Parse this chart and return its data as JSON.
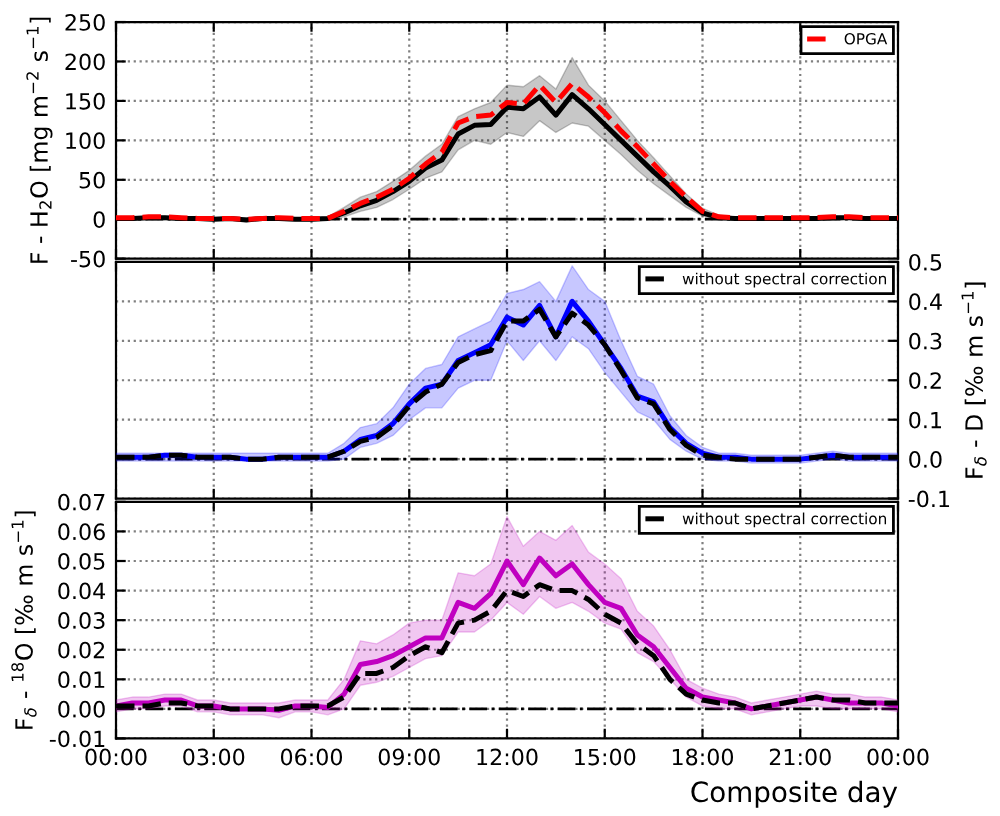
{
  "chart_data": [
    {
      "type": "line",
      "ylabel": "F - H$_{2}$O [mg m$^{−2}$ s$^{−1}$]",
      "x": [
        0,
        0.5,
        1,
        1.5,
        2,
        2.5,
        3,
        3.5,
        4,
        4.5,
        5,
        5.5,
        6,
        6.5,
        7,
        7.5,
        8,
        8.5,
        9,
        9.5,
        10,
        10.5,
        11,
        11.5,
        12,
        12.5,
        13,
        13.5,
        14,
        14.5,
        15,
        15.5,
        16,
        16.5,
        17,
        17.5,
        18,
        18.5,
        19,
        19.5,
        20,
        20.5,
        21,
        21.5,
        22,
        22.5,
        23,
        23.5,
        24
      ],
      "xlim": [
        0,
        24
      ],
      "xticks": [
        0,
        3,
        6,
        9,
        12,
        15,
        18,
        21,
        24
      ],
      "ylim": [
        -50,
        250
      ],
      "yticks": [
        -50,
        0,
        50,
        100,
        150,
        200,
        250
      ],
      "grid": true,
      "legend": "top right",
      "tick_labels": "y",
      "ref_lines": [
        {
          "axis": "y",
          "value": 0,
          "color": "#000000",
          "line_style": "dashdot"
        }
      ],
      "series": [
        {
          "color": "#000000",
          "line_style": "solid",
          "values": [
            1,
            1,
            2,
            2,
            1,
            1,
            0,
            1,
            -1,
            1,
            1,
            0,
            0,
            1,
            8,
            17,
            24,
            35,
            48,
            65,
            75,
            108,
            119,
            120,
            142,
            140,
            155,
            132,
            158,
            140,
            120,
            100,
            80,
            60,
            42,
            22,
            8,
            2,
            1,
            1,
            1,
            1,
            1,
            1,
            2,
            2,
            1,
            1,
            1
          ],
          "lower": [
            -1,
            -1,
            0,
            0,
            -1,
            -1,
            -2,
            -1,
            -3,
            -1,
            -1,
            -2,
            -2,
            -1,
            3,
            10,
            15,
            25,
            38,
            52,
            60,
            88,
            100,
            95,
            110,
            105,
            125,
            110,
            122,
            118,
            100,
            82,
            62,
            45,
            30,
            15,
            4,
            0,
            -1,
            -1,
            -1,
            -1,
            -1,
            -1,
            0,
            0,
            -1,
            -1,
            -1
          ],
          "upper": [
            3,
            3,
            4,
            4,
            3,
            3,
            2,
            3,
            1,
            3,
            3,
            2,
            2,
            3,
            15,
            28,
            35,
            48,
            62,
            80,
            95,
            130,
            140,
            148,
            170,
            168,
            182,
            165,
            205,
            170,
            150,
            125,
            100,
            78,
            55,
            32,
            14,
            5,
            3,
            3,
            3,
            3,
            3,
            3,
            4,
            4,
            3,
            3,
            3
          ]
        },
        {
          "name": "OPGA",
          "color": "#ff0000",
          "line_style": "dashed",
          "values": [
            2,
            2,
            3,
            3,
            2,
            1,
            1,
            1,
            0,
            1,
            2,
            1,
            1,
            1,
            10,
            20,
            28,
            38,
            52,
            70,
            85,
            122,
            130,
            132,
            148,
            146,
            170,
            148,
            172,
            155,
            135,
            112,
            92,
            70,
            48,
            28,
            10,
            3,
            2,
            2,
            2,
            2,
            2,
            2,
            3,
            3,
            2,
            2,
            2
          ]
        }
      ]
    },
    {
      "type": "line",
      "y2label": "F$_{δ}$ - D [‰ m s$^{−1}$]",
      "x": [
        0,
        0.5,
        1,
        1.5,
        2,
        2.5,
        3,
        3.5,
        4,
        4.5,
        5,
        5.5,
        6,
        6.5,
        7,
        7.5,
        8,
        8.5,
        9,
        9.5,
        10,
        10.5,
        11,
        11.5,
        12,
        12.5,
        13,
        13.5,
        14,
        14.5,
        15,
        15.5,
        16,
        16.5,
        17,
        17.5,
        18,
        18.5,
        19,
        19.5,
        20,
        20.5,
        21,
        21.5,
        22,
        22.5,
        23,
        23.5,
        24
      ],
      "xlim": [
        0,
        24
      ],
      "xticks": [
        0,
        3,
        6,
        9,
        12,
        15,
        18,
        21,
        24
      ],
      "y2lim": [
        -0.1,
        0.5
      ],
      "y2ticks": [
        -0.1,
        {
          "value": 0,
          "label": "0.0"
        },
        0.1,
        0.2,
        0.3,
        0.4,
        0.5
      ],
      "grid": true,
      "legend": "top right",
      "tick_labels": "y",
      "ref_lines": [
        {
          "axis": "y2",
          "value": 0,
          "color": "#000000",
          "line_style": "dashdot"
        }
      ],
      "series": [
        {
          "color": "#0000ff",
          "axis": "y2",
          "line_style": "solid",
          "values": [
            0.005,
            0.005,
            0.005,
            0.01,
            0.01,
            0.005,
            0.005,
            0.005,
            0,
            0,
            0.005,
            0.005,
            0.005,
            0.005,
            0.02,
            0.05,
            0.06,
            0.09,
            0.14,
            0.18,
            0.19,
            0.25,
            0.27,
            0.29,
            0.36,
            0.34,
            0.39,
            0.31,
            0.4,
            0.35,
            0.29,
            0.23,
            0.16,
            0.145,
            0.08,
            0.04,
            0.015,
            0.005,
            0.005,
            0,
            0,
            0,
            0,
            0.005,
            0.01,
            0.005,
            0.005,
            0.005,
            0.005
          ],
          "lower": [
            -0.005,
            -0.005,
            -0.005,
            -0.005,
            -0.005,
            -0.005,
            -0.005,
            -0.005,
            -0.005,
            -0.005,
            -0.005,
            -0.005,
            -0.005,
            -0.005,
            0.0,
            0.03,
            0.04,
            0.06,
            0.1,
            0.13,
            0.13,
            0.18,
            0.2,
            0.2,
            0.3,
            0.25,
            0.3,
            0.25,
            0.31,
            0.28,
            0.22,
            0.17,
            0.12,
            0.1,
            0.05,
            0.02,
            0.0,
            -0.005,
            -0.005,
            -0.01,
            -0.01,
            -0.01,
            -0.01,
            -0.005,
            0,
            -0.005,
            -0.005,
            -0.005,
            -0.005
          ],
          "upper": [
            0.015,
            0.015,
            0.015,
            0.015,
            0.015,
            0.015,
            0.015,
            0.015,
            0.015,
            0.015,
            0.015,
            0.015,
            0.015,
            0.015,
            0.04,
            0.08,
            0.09,
            0.13,
            0.19,
            0.23,
            0.24,
            0.31,
            0.33,
            0.35,
            0.42,
            0.43,
            0.45,
            0.4,
            0.49,
            0.43,
            0.4,
            0.3,
            0.21,
            0.19,
            0.11,
            0.06,
            0.03,
            0.015,
            0.015,
            0.01,
            0.01,
            0.01,
            0.01,
            0.015,
            0.02,
            0.015,
            0.015,
            0.015,
            0.015
          ]
        },
        {
          "name": "without spectral correction",
          "color": "#000000",
          "axis": "y2",
          "line_style": "dashed",
          "values": [
            0.005,
            0.005,
            0.005,
            0.01,
            0.01,
            0.005,
            0.005,
            0.005,
            0,
            0,
            0.005,
            0.005,
            0.005,
            0.005,
            0.02,
            0.045,
            0.055,
            0.085,
            0.135,
            0.17,
            0.19,
            0.245,
            0.265,
            0.275,
            0.35,
            0.35,
            0.38,
            0.31,
            0.37,
            0.34,
            0.29,
            0.225,
            0.155,
            0.14,
            0.075,
            0.035,
            0.01,
            0.005,
            0,
            0,
            0,
            0,
            0,
            0.005,
            0.01,
            0.005,
            0.005,
            0.005,
            0.005
          ]
        }
      ]
    },
    {
      "type": "line",
      "ylabel": "F$_{δ}$ - $^{18}$O [‰ m s$^{−1}$]",
      "xlabel": "Composite day",
      "x": [
        0,
        0.5,
        1,
        1.5,
        2,
        2.5,
        3,
        3.5,
        4,
        4.5,
        5,
        5.5,
        6,
        6.5,
        7,
        7.5,
        8,
        8.5,
        9,
        9.5,
        10,
        10.5,
        11,
        11.5,
        12,
        12.5,
        13,
        13.5,
        14,
        14.5,
        15,
        15.5,
        16,
        16.5,
        17,
        17.5,
        18,
        18.5,
        19,
        19.5,
        20,
        20.5,
        21,
        21.5,
        22,
        22.5,
        23,
        23.5,
        24
      ],
      "xlim": [
        0,
        24
      ],
      "xticks": [
        {
          "value": 0,
          "label": "00:00"
        },
        {
          "value": 3,
          "label": "03:00"
        },
        {
          "value": 6,
          "label": "06:00"
        },
        {
          "value": 9,
          "label": "09:00"
        },
        {
          "value": 12,
          "label": "12:00"
        },
        {
          "value": 15,
          "label": "15:00"
        },
        {
          "value": 18,
          "label": "18:00"
        },
        {
          "value": 21,
          "label": "21:00"
        },
        {
          "value": 24,
          "label": "00:00"
        }
      ],
      "ylim": [
        -0.01,
        0.07
      ],
      "yticks": [
        -0.01,
        {
          "value": 0,
          "label": "0.00"
        },
        0.01,
        0.02,
        0.03,
        0.04,
        0.05,
        0.06,
        0.07
      ],
      "grid": true,
      "legend": "top right",
      "ref_lines": [
        {
          "axis": "y",
          "value": 0,
          "color": "#000000",
          "line_style": "dashdot"
        }
      ],
      "series": [
        {
          "color": "#c000c0",
          "line_style": "solid",
          "values": [
            0.001,
            0.002,
            0.002,
            0.003,
            0.003,
            0.001,
            0.001,
            0,
            0,
            0,
            -0.0005,
            0.001,
            0.001,
            0.0005,
            0.005,
            0.015,
            0.016,
            0.018,
            0.021,
            0.024,
            0.024,
            0.036,
            0.034,
            0.039,
            0.05,
            0.042,
            0.051,
            0.045,
            0.049,
            0.042,
            0.036,
            0.034,
            0.025,
            0.021,
            0.014,
            0.007,
            0.004,
            0.003,
            0.002,
            0,
            0.001,
            0.002,
            0.003,
            0.004,
            0.003,
            0.002,
            0.002,
            0.002,
            0.001
          ],
          "lower": [
            -0.001,
            0,
            0,
            0.001,
            0.001,
            -0.001,
            -0.001,
            -0.002,
            -0.002,
            -0.002,
            -0.003,
            -0.001,
            -0.001,
            -0.002,
            0,
            0.008,
            0.009,
            0.011,
            0.014,
            0.017,
            0.018,
            0.026,
            0.026,
            0.03,
            0.036,
            0.032,
            0.038,
            0.034,
            0.036,
            0.033,
            0.029,
            0.027,
            0.019,
            0.016,
            0.01,
            0.004,
            0.001,
            0,
            0,
            -0.002,
            -0.001,
            0,
            0.001,
            0.001,
            0,
            0,
            0,
            0,
            -0.001
          ],
          "upper": [
            0.003,
            0.004,
            0.004,
            0.005,
            0.005,
            0.003,
            0.003,
            0.002,
            0.002,
            0.002,
            0.002,
            0.003,
            0.003,
            0.003,
            0.01,
            0.023,
            0.022,
            0.025,
            0.029,
            0.03,
            0.03,
            0.046,
            0.045,
            0.049,
            0.065,
            0.055,
            0.06,
            0.057,
            0.062,
            0.053,
            0.049,
            0.044,
            0.033,
            0.028,
            0.02,
            0.01,
            0.007,
            0.005,
            0.004,
            0.002,
            0.003,
            0.004,
            0.005,
            0.006,
            0.005,
            0.005,
            0.004,
            0.004,
            0.003
          ]
        },
        {
          "name": "without spectral correction",
          "color": "#000000",
          "line_style": "dashed",
          "values": [
            0.001,
            0.001,
            0.001,
            0.002,
            0.002,
            0.001,
            0.001,
            0,
            0,
            0,
            0,
            0.001,
            0.001,
            0.001,
            0.004,
            0.012,
            0.012,
            0.014,
            0.018,
            0.021,
            0.019,
            0.029,
            0.03,
            0.033,
            0.04,
            0.038,
            0.042,
            0.04,
            0.04,
            0.037,
            0.032,
            0.029,
            0.022,
            0.018,
            0.01,
            0.005,
            0.003,
            0.002,
            0.002,
            0.0,
            0.001,
            0.002,
            0.003,
            0.004,
            0.003,
            0.003,
            0.002,
            0.002,
            0.002
          ]
        }
      ]
    }
  ]
}
